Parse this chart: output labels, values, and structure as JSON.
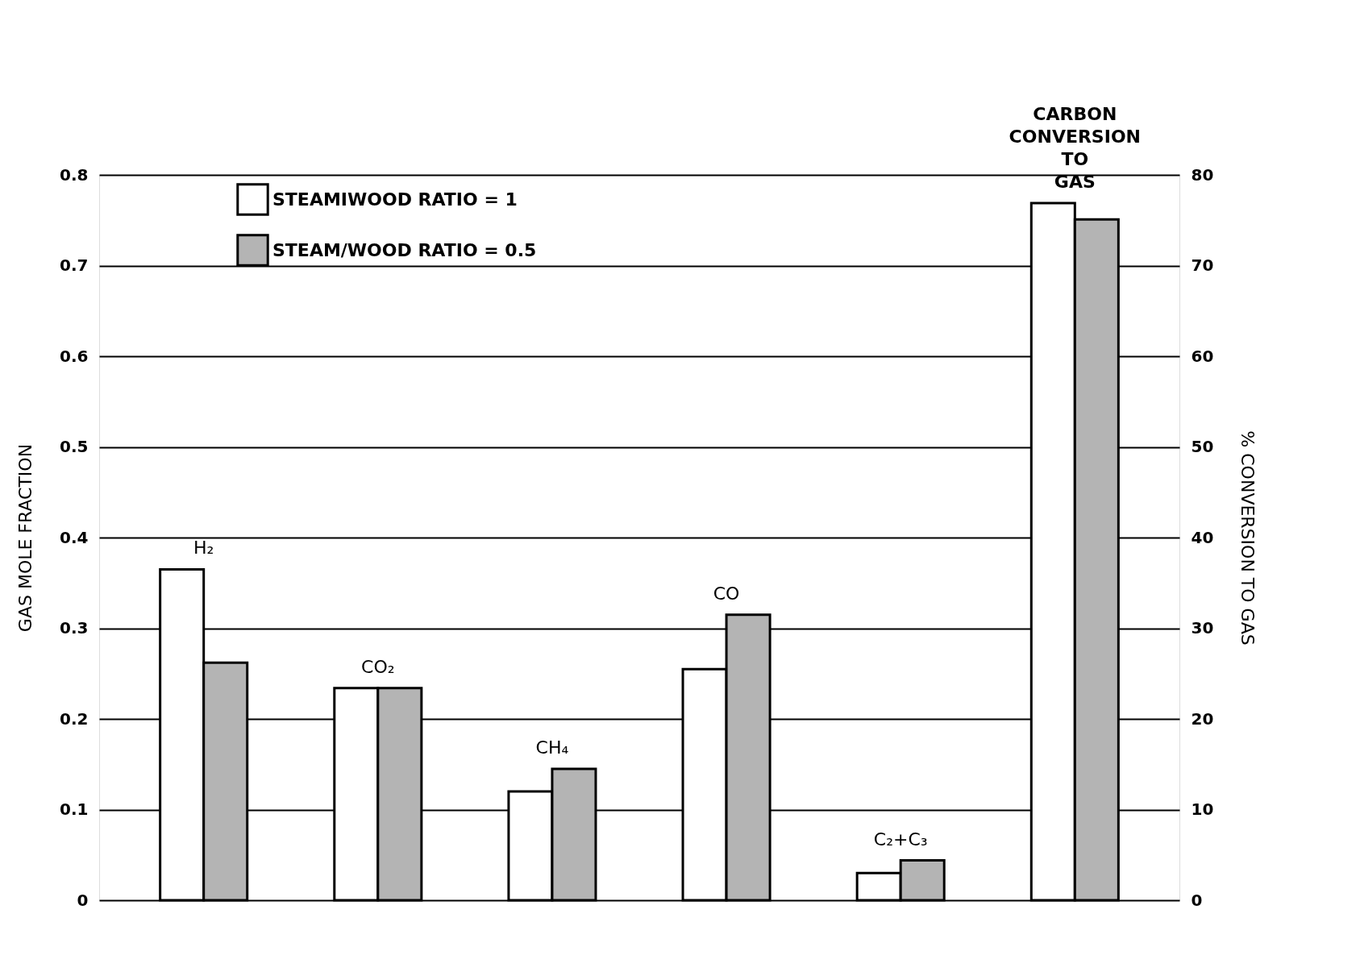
{
  "chart_data": {
    "type": "bar",
    "ylabel": "GAS MOLE FRACTION",
    "y2label": "% CONVERSION TO GAS",
    "categories": [
      "H₂",
      "CO₂",
      "CH₄",
      "CO",
      "C₂+C₃",
      "CARBON CONVERSION TO GAS"
    ],
    "series": [
      {
        "name": "STEAMIWOOD RATIO = 1",
        "color": "#ffffff",
        "values": [
          0.365,
          0.234,
          0.12,
          0.255,
          0.03,
          null
        ]
      },
      {
        "name": "STEAM/WOOD RATIO = 0.5",
        "color": "#b4b4b4",
        "values": [
          0.262,
          0.234,
          0.145,
          0.315,
          0.044,
          null
        ]
      },
      {
        "color": "#ffffff",
        "axis": "y2",
        "values": [
          null,
          null,
          null,
          null,
          null,
          76.9
        ]
      },
      {
        "color": "#b4b4b4",
        "axis": "y2",
        "values": [
          null,
          null,
          null,
          null,
          null,
          75.1
        ]
      }
    ],
    "ylim": [
      0,
      0.8
    ],
    "yticks": [
      {
        "value": 0,
        "label": "0"
      },
      0.1,
      0.2,
      0.3,
      0.4,
      0.5,
      0.6,
      0.7,
      0.8
    ],
    "y2lim": [
      0,
      80
    ],
    "y2ticks": [
      0,
      10,
      20,
      30,
      40,
      50,
      60,
      70,
      80
    ],
    "grid": "y",
    "legend": "top left"
  }
}
